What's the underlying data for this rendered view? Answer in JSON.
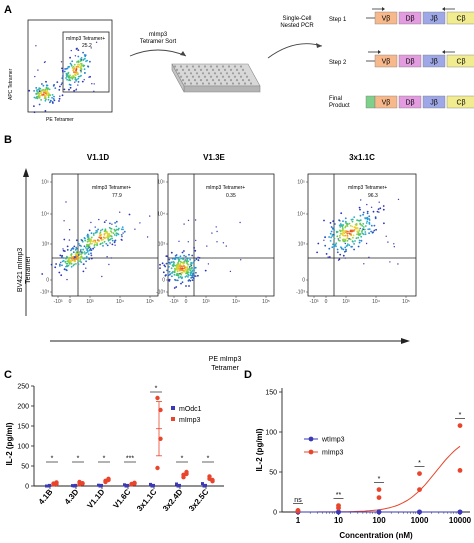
{
  "panel_labels": {
    "a": "A",
    "b": "B",
    "c": "C",
    "d": "D"
  },
  "panel_a": {
    "flow": {
      "ylabel": "APC Tetramer",
      "xlabel": "PE Tetramer",
      "gate_label": "mImp3 Tetramer+",
      "gate_value": "25.2"
    },
    "sort_label": [
      "mImp3",
      "Tetramer Sort"
    ],
    "pcr_label": [
      "Single-Cell",
      "Nested PCR"
    ],
    "steps": [
      {
        "label": "Step 1",
        "segments": [
          "Vβ",
          "Dβ",
          "Jβ",
          "Cβ"
        ]
      },
      {
        "label": "Step 2",
        "segments": [
          "Vβ",
          "Dβ",
          "Jβ",
          "Cβ"
        ]
      },
      {
        "label": "Final Product",
        "segments": [
          "Vβ",
          "Dβ",
          "Jβ",
          "Cβ"
        ]
      }
    ],
    "colors": {
      "v": "#f7b98b",
      "d": "#e39ce0",
      "j": "#9fa8e6",
      "c": "#f2ec90",
      "left": "#7ed08a",
      "right": "#a0d8f0"
    }
  },
  "panel_b": {
    "plots": [
      {
        "title": "V1.1D",
        "gate_label": "mImp3 Tetramer+",
        "gate_value": "77.9"
      },
      {
        "title": "V1.3E",
        "gate_label": "mImp3 Tetramer+",
        "gate_value": "0.35"
      },
      {
        "title": "3x1.1C",
        "gate_label": "mImp3 Tetramer+",
        "gate_value": "96.3"
      }
    ],
    "ylabel": [
      "BV421 mImp3",
      "Tetramer"
    ],
    "xlabel": [
      "PE mImp3",
      "Tetramer"
    ],
    "ytick_labels": [
      "10⁵",
      "10⁴",
      "10³",
      "0",
      "-10³"
    ],
    "xtick_labels": [
      "-10³",
      "0",
      "10³",
      "10⁴",
      "10⁵"
    ]
  },
  "chart_data": [
    {
      "type": "scatter",
      "panel": "C",
      "ylabel": "IL-2 (pg/ml)",
      "categories": [
        "4.1B",
        "4.3D",
        "V1.1D",
        "V1.6C",
        "3x1.1C",
        "3x2.4D",
        "3x2.5C"
      ],
      "ylim": [
        0,
        250
      ],
      "yticks": [
        0,
        50,
        100,
        150,
        200,
        250
      ],
      "series": [
        {
          "name": "mOdc1",
          "marker": "square",
          "color": "#3a3ab8",
          "points": [
            [
              0,
              0,
              1.5
            ],
            [
              1,
              0,
              1.5
            ],
            [
              2,
              0,
              1.5
            ],
            [
              3,
              0,
              1.5
            ],
            [
              4,
              0,
              1.5
            ],
            [
              5,
              0,
              1.5
            ],
            [
              6,
              0,
              1.5
            ]
          ]
        },
        {
          "name": "mImp3",
          "marker": "circle",
          "color": "#e8452c",
          "points": [
            [
              4,
              9,
              6,
              5
            ],
            [
              4,
              7,
              10,
              6
            ],
            [
              13,
              18,
              10,
              15
            ],
            [
              4,
              8,
              5,
              6
            ],
            [
              220,
              118,
              45,
              190
            ],
            [
              22,
              35,
              28,
              30
            ],
            [
              18,
              12,
              24,
              15
            ]
          ]
        }
      ],
      "significance": [
        "*",
        "*",
        "*",
        "***",
        "*",
        "*",
        "*"
      ]
    },
    {
      "type": "scatter",
      "panel": "D",
      "ylabel": "IL-2 (pg/ml)",
      "xlabel": "Concentration (nM)",
      "xscale": "log",
      "x": [
        1,
        10,
        100,
        1000,
        10000
      ],
      "xtick_labels": [
        "1",
        "10",
        "100",
        "1000",
        "10000"
      ],
      "ylim": [
        0,
        150
      ],
      "yticks": [
        0,
        50,
        100,
        150
      ],
      "series": [
        {
          "name": "wtImp3",
          "color": "#3a3ab8",
          "values": [
            [
              0,
              0
            ],
            [
              0,
              0
            ],
            [
              0,
              0
            ],
            [
              0,
              0
            ],
            [
              0,
              0
            ]
          ]
        },
        {
          "name": "mImp3",
          "color": "#e8452c",
          "values": [
            [
              2,
              1
            ],
            [
              5,
              8
            ],
            [
              18,
              28
            ],
            [
              28,
              48
            ],
            [
              108,
              52
            ]
          ],
          "fit": true
        }
      ],
      "significance": [
        "ns",
        "**",
        "*",
        "*",
        "*"
      ]
    }
  ]
}
